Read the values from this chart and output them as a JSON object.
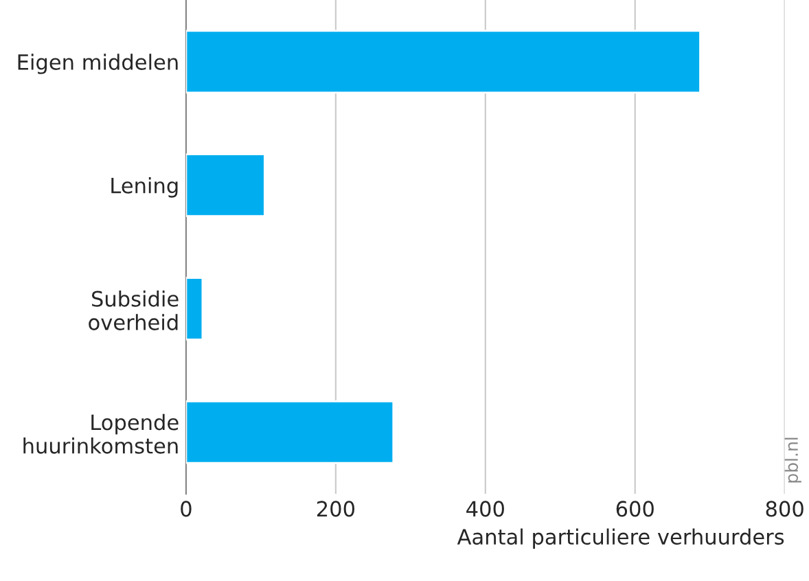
{
  "chart_data": {
    "type": "bar",
    "orientation": "horizontal",
    "categories": [
      "Eigen middelen",
      "Lening",
      "Subsidie\noverheid",
      "Lopende\nhuurinkomsten"
    ],
    "values": [
      687,
      105,
      22,
      277
    ],
    "color": "#00aeef",
    "xlabel": "Aantal particuliere verhuurders",
    "xlim": [
      0,
      800
    ],
    "xticks": [
      0,
      200,
      400,
      600,
      800
    ],
    "grid": "x",
    "annotations": [
      "pbl.nl"
    ]
  }
}
